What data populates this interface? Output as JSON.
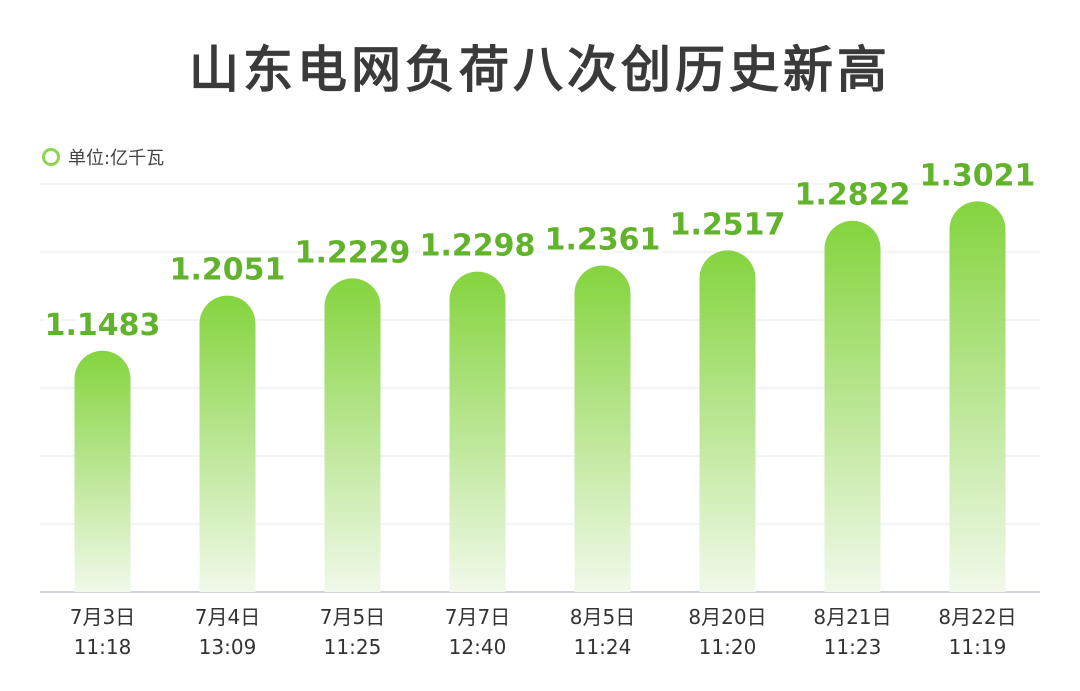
{
  "colors": {
    "bar_top": "#84d43e",
    "bar_bottom": "#f1f9ea",
    "label": "#62b32c",
    "grid": "#e6e8ef",
    "axis": "#cfd3da"
  },
  "chart_data": {
    "type": "bar",
    "title": "山东电网负荷八次创历史新高",
    "unit_label": "单位:亿千瓦",
    "categories": [
      {
        "date": "7月3日",
        "time": "11:18"
      },
      {
        "date": "7月4日",
        "time": "13:09"
      },
      {
        "date": "7月5日",
        "time": "11:25"
      },
      {
        "date": "7月7日",
        "time": "12:40"
      },
      {
        "date": "8月5日",
        "time": "11:24"
      },
      {
        "date": "8月20日",
        "time": "11:20"
      },
      {
        "date": "8月21日",
        "time": "11:23"
      },
      {
        "date": "8月22日",
        "time": "11:19"
      }
    ],
    "values": [
      1.1483,
      1.2051,
      1.2229,
      1.2298,
      1.2361,
      1.2517,
      1.2822,
      1.3021
    ],
    "value_labels": [
      "1.1483",
      "1.2051",
      "1.2229",
      "1.2298",
      "1.2361",
      "1.2517",
      "1.2822",
      "1.3021"
    ],
    "ylim": [
      0.9,
      1.32
    ],
    "grid": true,
    "legend": "top-left"
  }
}
